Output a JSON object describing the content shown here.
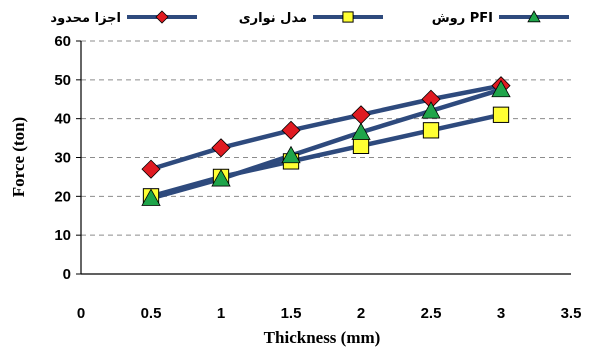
{
  "chart_data": {
    "type": "line",
    "title": "",
    "xlabel": "Thickness (mm)",
    "ylabel": "Force (ton)",
    "xlim": [
      0,
      3.5
    ],
    "ylim": [
      0,
      60
    ],
    "x_ticks": [
      "0",
      "0.5",
      "1",
      "1.5",
      "2",
      "2.5",
      "3",
      "3.5"
    ],
    "y_ticks": [
      "0",
      "10",
      "20",
      "30",
      "40",
      "50",
      "60"
    ],
    "grid": "horizontal dashed",
    "legend_position": "top",
    "line_color": "#2E4A7D",
    "series": [
      {
        "name": "اجزا محدود",
        "marker": "diamond",
        "marker_color": "#E01B22",
        "x": [
          0.5,
          1,
          1.5,
          2,
          2.5,
          3
        ],
        "y": [
          27,
          32.5,
          37,
          41,
          45,
          48.5
        ]
      },
      {
        "name": "مدل نواری",
        "marker": "square",
        "marker_color": "#FFFF33",
        "x": [
          0.5,
          1,
          1.5,
          2,
          2.5,
          3
        ],
        "y": [
          20,
          25,
          29,
          33,
          37,
          41
        ]
      },
      {
        "name": "روش PFI",
        "marker": "triangle",
        "marker_color": "#1FA54A",
        "x": [
          0.5,
          1,
          1.5,
          2,
          2.5,
          3
        ],
        "y": [
          19.5,
          24.5,
          30.5,
          36.5,
          42,
          47.5
        ]
      }
    ]
  }
}
